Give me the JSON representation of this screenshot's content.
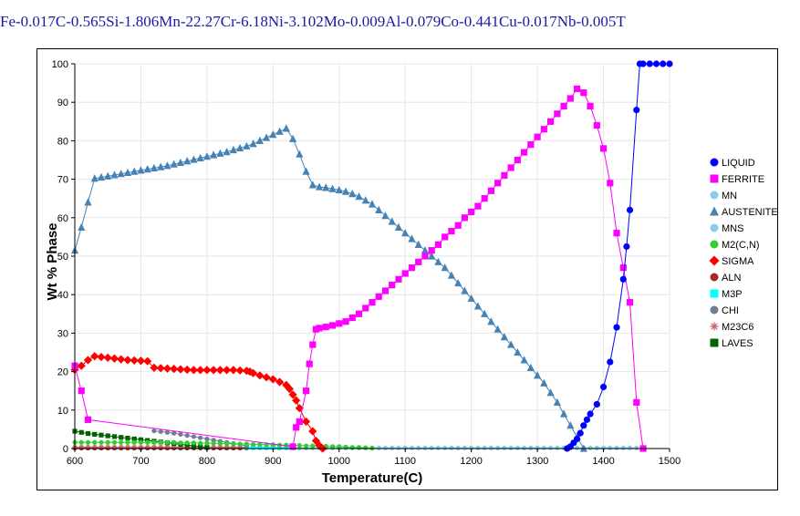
{
  "chart_data": {
    "type": "line",
    "title": "Fe-0.017C-0.565Si-1.806Mn-22.27Cr-6.18Ni-3.102Mo-0.009Al-0.079Co-0.441Cu-0.017Nb-0.005T",
    "xlabel": "Temperature(C)",
    "ylabel": "Wt % Phase",
    "xlim": [
      600,
      1500
    ],
    "ylim": [
      0,
      100
    ],
    "xticks": [
      600,
      700,
      800,
      900,
      1000,
      1100,
      1200,
      1300,
      1400,
      1500
    ],
    "yticks": [
      0,
      10,
      20,
      30,
      40,
      50,
      60,
      70,
      80,
      90,
      100
    ],
    "grid": true,
    "legend_position": "right",
    "series": [
      {
        "name": "LIQUID",
        "color": "#0000ff",
        "marker": "circle",
        "x": [
          1345,
          1350,
          1355,
          1360,
          1365,
          1370,
          1375,
          1380,
          1390,
          1400,
          1410,
          1420,
          1430,
          1435,
          1440,
          1450,
          1455,
          1460,
          1470,
          1480,
          1490,
          1500
        ],
        "y": [
          0,
          0.5,
          1.5,
          2.5,
          4,
          6,
          7.5,
          9,
          11.5,
          16,
          22.5,
          31.5,
          44,
          52.5,
          62,
          88,
          100,
          100,
          100,
          100,
          100,
          100
        ]
      },
      {
        "name": "FERRITE",
        "color": "#ff00ff",
        "marker": "square",
        "x": [
          600,
          610,
          620,
          930,
          935,
          940,
          950,
          955,
          960,
          965,
          970,
          980,
          990,
          1000,
          1010,
          1020,
          1030,
          1040,
          1050,
          1060,
          1070,
          1080,
          1090,
          1100,
          1110,
          1120,
          1130,
          1140,
          1150,
          1160,
          1170,
          1180,
          1190,
          1200,
          1210,
          1220,
          1230,
          1240,
          1250,
          1260,
          1270,
          1280,
          1290,
          1300,
          1310,
          1320,
          1330,
          1340,
          1350,
          1360,
          1370,
          1380,
          1390,
          1400,
          1410,
          1420,
          1430,
          1440,
          1450,
          1460
        ],
        "y": [
          21.5,
          15,
          7.5,
          0.5,
          5.5,
          7,
          15,
          22,
          27,
          31,
          31.3,
          31.6,
          32,
          32.5,
          33,
          34,
          35,
          36.5,
          38,
          39.5,
          41,
          42.5,
          44,
          45.5,
          47,
          48.5,
          50,
          51.5,
          53,
          55,
          56.5,
          58,
          60,
          61.5,
          63,
          65,
          67,
          69,
          71,
          73,
          75,
          77,
          79,
          81,
          83,
          85,
          87,
          89,
          91,
          93.5,
          92.5,
          89,
          84,
          78,
          69,
          56,
          47,
          38,
          12,
          0
        ]
      },
      {
        "name": "MN",
        "color": "#87ceeb",
        "marker": "circle",
        "x": [
          920,
          930,
          940,
          950,
          960,
          970,
          980,
          990,
          1000,
          1010,
          1020,
          1030,
          1040,
          1050,
          1060,
          1070,
          1080,
          1090,
          1100,
          1110,
          1120,
          1130,
          1140,
          1150,
          1160,
          1170,
          1180,
          1190,
          1200,
          1210,
          1220,
          1230,
          1240,
          1250,
          1260,
          1270,
          1280,
          1290,
          1300,
          1310,
          1320,
          1330,
          1340,
          1350,
          1360,
          1370,
          1380,
          1390,
          1400,
          1410,
          1420,
          1430,
          1440,
          1450
        ],
        "y": [
          0.15,
          0.15,
          0.15,
          0.15,
          0.15,
          0.15,
          0.15,
          0.15,
          0.15,
          0.15,
          0.15,
          0.15,
          0.15,
          0.15,
          0.15,
          0.15,
          0.15,
          0.15,
          0.15,
          0.15,
          0.15,
          0.15,
          0.15,
          0.15,
          0.15,
          0.15,
          0.15,
          0.15,
          0.15,
          0.15,
          0.15,
          0.15,
          0.15,
          0.15,
          0.15,
          0.15,
          0.15,
          0.15,
          0.15,
          0.15,
          0.15,
          0.15,
          0.15,
          0.15,
          0.15,
          0.15,
          0.15,
          0.15,
          0.15,
          0.15,
          0.15,
          0.15,
          0.15,
          0.15
        ]
      },
      {
        "name": "AUSTENITE",
        "color": "#4682b4",
        "marker": "triangle",
        "x": [
          600,
          610,
          620,
          630,
          640,
          650,
          660,
          670,
          680,
          690,
          700,
          710,
          720,
          730,
          740,
          750,
          760,
          770,
          780,
          790,
          800,
          810,
          820,
          830,
          840,
          850,
          860,
          870,
          880,
          890,
          900,
          910,
          920,
          930,
          940,
          950,
          960,
          970,
          980,
          990,
          1000,
          1010,
          1020,
          1030,
          1040,
          1050,
          1060,
          1070,
          1080,
          1090,
          1100,
          1110,
          1120,
          1130,
          1140,
          1150,
          1160,
          1170,
          1180,
          1190,
          1200,
          1210,
          1220,
          1230,
          1240,
          1250,
          1260,
          1270,
          1280,
          1290,
          1300,
          1310,
          1320,
          1330,
          1340,
          1350,
          1360,
          1370
        ],
        "y": [
          51.5,
          57.5,
          64,
          70.2,
          70.5,
          70.8,
          71.1,
          71.4,
          71.7,
          72,
          72.3,
          72.6,
          72.9,
          73.2,
          73.5,
          73.9,
          74.3,
          74.7,
          75.1,
          75.5,
          75.9,
          76.3,
          76.7,
          77.1,
          77.6,
          78.1,
          78.6,
          79.2,
          80,
          80.8,
          81.6,
          82.4,
          83.2,
          80.5,
          76.5,
          72,
          68.5,
          68,
          67.8,
          67.5,
          67.2,
          66.8,
          66.2,
          65.5,
          64.5,
          63.5,
          62,
          60.5,
          59,
          57.5,
          56,
          54.5,
          53,
          51.5,
          50,
          48.5,
          47,
          45,
          43,
          41,
          39,
          37,
          35,
          33,
          31,
          29,
          27,
          25,
          23,
          21,
          19,
          17,
          14.5,
          12,
          9,
          6,
          3,
          0
        ]
      },
      {
        "name": "MNS",
        "color": "#87ceeb",
        "marker": "circle",
        "x": [
          600,
          610,
          620,
          630,
          640,
          650,
          660,
          670,
          680,
          690,
          700,
          710,
          720,
          730,
          740,
          750,
          760,
          770,
          780,
          790,
          800,
          810,
          820,
          830,
          840,
          850,
          860,
          870,
          880,
          890,
          900,
          910,
          920
        ],
        "y": [
          0.15,
          0.15,
          0.15,
          0.15,
          0.15,
          0.15,
          0.15,
          0.15,
          0.15,
          0.15,
          0.15,
          0.15,
          0.15,
          0.15,
          0.15,
          0.15,
          0.15,
          0.15,
          0.15,
          0.15,
          0.15,
          0.15,
          0.15,
          0.15,
          0.15,
          0.15,
          0.15,
          0.15,
          0.15,
          0.15,
          0.15,
          0.15,
          0.15
        ]
      },
      {
        "name": "M2(C,N)",
        "color": "#32cd32",
        "marker": "circle",
        "x": [
          600,
          610,
          620,
          630,
          640,
          650,
          660,
          670,
          680,
          690,
          700,
          710,
          720,
          730,
          740,
          750,
          760,
          770,
          780,
          790,
          800,
          810,
          820,
          830,
          840,
          850,
          860,
          870,
          880,
          890,
          900,
          910,
          920,
          930,
          940,
          950,
          960,
          970,
          980,
          990,
          1000,
          1010,
          1020,
          1030,
          1040,
          1050
        ],
        "y": [
          1.6,
          1.6,
          1.6,
          1.6,
          1.6,
          1.6,
          1.6,
          1.6,
          1.6,
          1.6,
          1.6,
          1.6,
          1.6,
          1.6,
          1.6,
          1.6,
          1.5,
          1.5,
          1.5,
          1.4,
          1.4,
          1.4,
          1.3,
          1.3,
          1.2,
          1.2,
          1.2,
          1.1,
          1.1,
          1.0,
          1.0,
          0.9,
          0.9,
          0.8,
          0.8,
          0.7,
          0.7,
          0.6,
          0.6,
          0.5,
          0.5,
          0.4,
          0.3,
          0.3,
          0.2,
          0.1
        ]
      },
      {
        "name": "SIGMA",
        "color": "#ff0000",
        "marker": "diamond",
        "x": [
          600,
          610,
          620,
          630,
          640,
          650,
          660,
          670,
          680,
          690,
          700,
          710,
          720,
          730,
          740,
          750,
          760,
          770,
          780,
          790,
          800,
          810,
          820,
          830,
          840,
          850,
          860,
          865,
          870,
          880,
          890,
          900,
          910,
          920,
          925,
          930,
          935,
          940,
          950,
          960,
          965,
          970,
          975
        ],
        "y": [
          20.5,
          21.5,
          23,
          24,
          23.8,
          23.6,
          23.4,
          23.2,
          23,
          22.9,
          22.8,
          22.7,
          21,
          20.9,
          20.8,
          20.7,
          20.6,
          20.5,
          20.4,
          20.4,
          20.4,
          20.4,
          20.4,
          20.4,
          20.4,
          20.3,
          20.2,
          20,
          19.6,
          19,
          18.5,
          18,
          17.3,
          16.5,
          15.5,
          14,
          12.5,
          10.5,
          7,
          4.5,
          2,
          0.8,
          0
        ]
      },
      {
        "name": "ALN",
        "color": "#a52a2a",
        "marker": "circle",
        "x": [
          600,
          610,
          620,
          630,
          640,
          650,
          660,
          670,
          680,
          690,
          700,
          710,
          720,
          730,
          740,
          750,
          760,
          770,
          780,
          790,
          800,
          810,
          820,
          830,
          840,
          850,
          860
        ],
        "y": [
          0.1,
          0.1,
          0.1,
          0.1,
          0.1,
          0.1,
          0.1,
          0.1,
          0.1,
          0.1,
          0.1,
          0.1,
          0.1,
          0.1,
          0.1,
          0.1,
          0.1,
          0.1,
          0.1,
          0.1,
          0.1,
          0.1,
          0.1,
          0.1,
          0.1,
          0.1,
          0.1
        ]
      },
      {
        "name": "M3P",
        "color": "#00ffff",
        "marker": "square",
        "x": [
          860,
          870,
          880,
          890,
          900,
          910,
          920,
          930
        ],
        "y": [
          0.3,
          0.3,
          0.3,
          0.3,
          0.3,
          0.3,
          0.3,
          0.3
        ]
      },
      {
        "name": "CHI",
        "color": "#708090",
        "marker": "circle",
        "x": [
          720,
          730,
          740,
          750,
          760,
          770,
          780,
          790,
          800,
          810,
          820,
          830,
          840,
          850,
          860
        ],
        "y": [
          4.6,
          4.4,
          4.2,
          4.0,
          3.7,
          3.4,
          3.1,
          2.8,
          2.5,
          2.2,
          1.9,
          1.6,
          1.3,
          1.0,
          0.7
        ]
      },
      {
        "name": "M23C6",
        "color": "#cd5c5c",
        "marker": "star",
        "x": [
          600,
          610,
          620,
          630,
          640,
          650,
          660,
          670,
          680,
          690,
          700,
          710,
          720,
          730,
          740,
          750,
          760,
          770,
          780,
          790,
          800,
          810,
          820,
          830,
          840,
          850,
          860
        ],
        "y": [
          0.4,
          0.4,
          0.4,
          0.4,
          0.4,
          0.4,
          0.4,
          0.4,
          0.4,
          0.4,
          0.4,
          0.4,
          0.4,
          0.4,
          0.4,
          0.4,
          0.4,
          0.4,
          0.4,
          0.4,
          0.4,
          0.4,
          0.4,
          0.4,
          0.4,
          0.4,
          0.4
        ]
      },
      {
        "name": "LAVES",
        "color": "#006400",
        "marker": "square",
        "x": [
          600,
          610,
          620,
          630,
          640,
          650,
          660,
          670,
          680,
          690,
          700,
          710,
          720,
          730,
          740,
          750,
          760,
          770,
          780,
          790,
          800
        ],
        "y": [
          4.5,
          4.2,
          3.9,
          3.7,
          3.5,
          3.3,
          3.1,
          2.9,
          2.7,
          2.5,
          2.3,
          2.1,
          1.9,
          1.7,
          1.5,
          1.3,
          1.1,
          0.9,
          0.7,
          0.5,
          0.3
        ]
      }
    ]
  }
}
